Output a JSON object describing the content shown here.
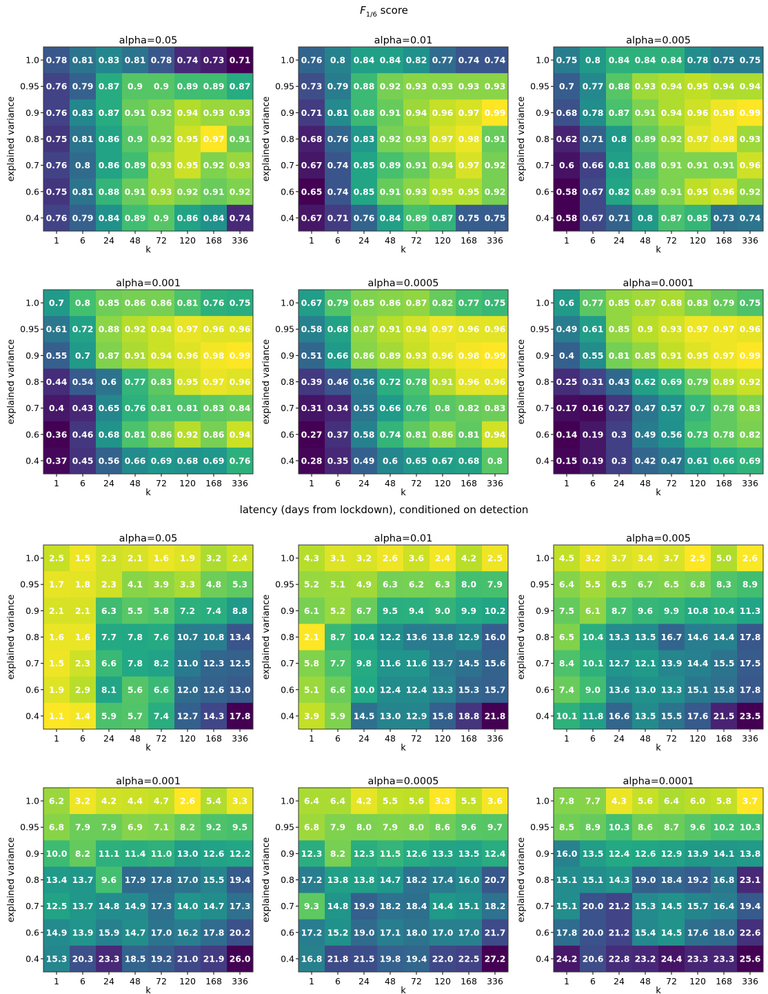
{
  "sections": [
    {
      "title_main": "F",
      "title_sub": "1/6",
      "title_rest": " score"
    },
    {
      "title_main": "latency (days from lockdown), conditioned on detection",
      "title_sub": "",
      "title_rest": ""
    }
  ],
  "chart_data": [
    {
      "type": "heatmap",
      "section": 0,
      "title": "alpha=0.05",
      "xlabel": "k",
      "ylabel": "explained variance",
      "x": [
        "1",
        "6",
        "24",
        "48",
        "72",
        "120",
        "168",
        "336"
      ],
      "y": [
        "1.0",
        "0.95",
        "0.9",
        "0.8",
        "0.7",
        "0.6",
        "0.4"
      ],
      "values": [
        [
          0.78,
          0.81,
          0.83,
          0.81,
          0.78,
          0.74,
          0.73,
          0.71
        ],
        [
          0.76,
          0.79,
          0.87,
          0.9,
          0.9,
          0.89,
          0.89,
          0.87
        ],
        [
          0.76,
          0.83,
          0.87,
          0.91,
          0.92,
          0.94,
          0.93,
          0.93
        ],
        [
          0.75,
          0.81,
          0.86,
          0.9,
          0.92,
          0.95,
          0.97,
          0.91
        ],
        [
          0.76,
          0.8,
          0.86,
          0.89,
          0.93,
          0.95,
          0.92,
          0.93
        ],
        [
          0.75,
          0.81,
          0.88,
          0.91,
          0.93,
          0.92,
          0.91,
          0.92
        ],
        [
          0.76,
          0.79,
          0.84,
          0.89,
          0.9,
          0.86,
          0.84,
          0.74
        ]
      ]
    },
    {
      "type": "heatmap",
      "section": 0,
      "title": "alpha=0.01",
      "xlabel": "k",
      "ylabel": "explained variance",
      "x": [
        "1",
        "6",
        "24",
        "48",
        "72",
        "120",
        "168",
        "336"
      ],
      "y": [
        "1.0",
        "0.95",
        "0.9",
        "0.8",
        "0.7",
        "0.6",
        "0.4"
      ],
      "values": [
        [
          0.76,
          0.8,
          0.84,
          0.84,
          0.82,
          0.77,
          0.74,
          0.74
        ],
        [
          0.73,
          0.79,
          0.88,
          0.92,
          0.93,
          0.93,
          0.93,
          0.93
        ],
        [
          0.71,
          0.81,
          0.88,
          0.91,
          0.94,
          0.96,
          0.97,
          0.99
        ],
        [
          0.68,
          0.76,
          0.83,
          0.92,
          0.93,
          0.97,
          0.98,
          0.91
        ],
        [
          0.67,
          0.74,
          0.85,
          0.89,
          0.91,
          0.94,
          0.97,
          0.92
        ],
        [
          0.65,
          0.74,
          0.85,
          0.91,
          0.93,
          0.95,
          0.95,
          0.92
        ],
        [
          0.67,
          0.71,
          0.76,
          0.84,
          0.89,
          0.87,
          0.75,
          0.75
        ]
      ]
    },
    {
      "type": "heatmap",
      "section": 0,
      "title": "alpha=0.005",
      "xlabel": "k",
      "ylabel": "explained variance",
      "x": [
        "1",
        "6",
        "24",
        "48",
        "72",
        "120",
        "168",
        "336"
      ],
      "y": [
        "1.0",
        "0.95",
        "0.9",
        "0.8",
        "0.7",
        "0.6",
        "0.4"
      ],
      "values": [
        [
          0.75,
          0.8,
          0.84,
          0.84,
          0.84,
          0.78,
          0.75,
          0.75
        ],
        [
          0.7,
          0.77,
          0.88,
          0.93,
          0.94,
          0.95,
          0.94,
          0.94
        ],
        [
          0.68,
          0.78,
          0.87,
          0.91,
          0.94,
          0.96,
          0.98,
          0.99
        ],
        [
          0.62,
          0.71,
          0.8,
          0.89,
          0.92,
          0.97,
          0.98,
          0.93
        ],
        [
          0.6,
          0.66,
          0.81,
          0.88,
          0.91,
          0.91,
          0.91,
          0.96
        ],
        [
          0.58,
          0.67,
          0.82,
          0.89,
          0.91,
          0.95,
          0.96,
          0.92
        ],
        [
          0.58,
          0.67,
          0.71,
          0.8,
          0.87,
          0.85,
          0.73,
          0.74
        ]
      ]
    },
    {
      "type": "heatmap",
      "section": 0,
      "title": "alpha=0.001",
      "xlabel": "k",
      "ylabel": "explained variance",
      "x": [
        "1",
        "6",
        "24",
        "48",
        "72",
        "120",
        "168",
        "336"
      ],
      "y": [
        "1.0",
        "0.95",
        "0.9",
        "0.8",
        "0.7",
        "0.6",
        "0.4"
      ],
      "values": [
        [
          0.7,
          0.8,
          0.85,
          0.86,
          0.86,
          0.81,
          0.76,
          0.75
        ],
        [
          0.61,
          0.72,
          0.88,
          0.92,
          0.94,
          0.97,
          0.96,
          0.96
        ],
        [
          0.55,
          0.7,
          0.87,
          0.91,
          0.94,
          0.96,
          0.98,
          0.99
        ],
        [
          0.44,
          0.54,
          0.6,
          0.77,
          0.83,
          0.95,
          0.97,
          0.96
        ],
        [
          0.4,
          0.43,
          0.65,
          0.76,
          0.81,
          0.81,
          0.83,
          0.84
        ],
        [
          0.36,
          0.46,
          0.68,
          0.81,
          0.86,
          0.92,
          0.86,
          0.94
        ],
        [
          0.37,
          0.45,
          0.56,
          0.66,
          0.69,
          0.68,
          0.69,
          0.76
        ]
      ]
    },
    {
      "type": "heatmap",
      "section": 0,
      "title": "alpha=0.0005",
      "xlabel": "k",
      "ylabel": "explained variance",
      "x": [
        "1",
        "6",
        "24",
        "48",
        "72",
        "120",
        "168",
        "336"
      ],
      "y": [
        "1.0",
        "0.95",
        "0.9",
        "0.8",
        "0.7",
        "0.6",
        "0.4"
      ],
      "values": [
        [
          0.67,
          0.79,
          0.85,
          0.86,
          0.87,
          0.82,
          0.77,
          0.75
        ],
        [
          0.58,
          0.68,
          0.87,
          0.91,
          0.94,
          0.97,
          0.96,
          0.96
        ],
        [
          0.51,
          0.66,
          0.86,
          0.89,
          0.93,
          0.96,
          0.98,
          0.99
        ],
        [
          0.39,
          0.46,
          0.56,
          0.72,
          0.78,
          0.91,
          0.96,
          0.96
        ],
        [
          0.31,
          0.34,
          0.55,
          0.66,
          0.76,
          0.8,
          0.82,
          0.83
        ],
        [
          0.27,
          0.37,
          0.58,
          0.74,
          0.81,
          0.86,
          0.81,
          0.94
        ],
        [
          0.28,
          0.35,
          0.49,
          0.6,
          0.65,
          0.67,
          0.68,
          0.8
        ]
      ]
    },
    {
      "type": "heatmap",
      "section": 0,
      "title": "alpha=0.0001",
      "xlabel": "k",
      "ylabel": "explained variance",
      "x": [
        "1",
        "6",
        "24",
        "48",
        "72",
        "120",
        "168",
        "336"
      ],
      "y": [
        "1.0",
        "0.95",
        "0.9",
        "0.8",
        "0.7",
        "0.6",
        "0.4"
      ],
      "values": [
        [
          0.6,
          0.77,
          0.85,
          0.87,
          0.88,
          0.83,
          0.79,
          0.75
        ],
        [
          0.49,
          0.61,
          0.85,
          0.9,
          0.93,
          0.97,
          0.97,
          0.96
        ],
        [
          0.4,
          0.55,
          0.81,
          0.85,
          0.91,
          0.95,
          0.97,
          0.99
        ],
        [
          0.25,
          0.31,
          0.43,
          0.62,
          0.69,
          0.79,
          0.89,
          0.92
        ],
        [
          0.17,
          0.16,
          0.27,
          0.47,
          0.57,
          0.7,
          0.78,
          0.83
        ],
        [
          0.14,
          0.19,
          0.3,
          0.49,
          0.56,
          0.73,
          0.78,
          0.82
        ],
        [
          0.15,
          0.19,
          0.3,
          0.42,
          0.47,
          0.61,
          0.66,
          0.69
        ]
      ]
    },
    {
      "type": "heatmap",
      "section": 1,
      "title": "alpha=0.05",
      "xlabel": "k",
      "ylabel": "explained variance",
      "x": [
        "1",
        "6",
        "24",
        "48",
        "72",
        "120",
        "168",
        "336"
      ],
      "y": [
        "1.0",
        "0.95",
        "0.9",
        "0.8",
        "0.7",
        "0.6",
        "0.4"
      ],
      "values": [
        [
          "2.5",
          "1.5",
          "2.3",
          "2.1",
          "1.6",
          "1.9",
          "3.2",
          "2.4"
        ],
        [
          "1.7",
          "1.8",
          "2.3",
          "4.1",
          "3.9",
          "3.3",
          "4.8",
          "5.3"
        ],
        [
          "2.1",
          "2.1",
          "6.3",
          "5.5",
          "5.8",
          "7.2",
          "7.4",
          "8.8"
        ],
        [
          "1.6",
          "1.6",
          "7.7",
          "7.8",
          "7.6",
          "10.7",
          "10.8",
          "13.4"
        ],
        [
          "1.5",
          "2.3",
          "6.6",
          "7.8",
          "8.2",
          "11.0",
          "12.3",
          "12.5"
        ],
        [
          "1.9",
          "2.9",
          "8.1",
          "5.6",
          "6.6",
          "12.0",
          "12.6",
          "13.0"
        ],
        [
          "1.1",
          "1.4",
          "5.9",
          "5.7",
          "7.4",
          "12.7",
          "14.3",
          "17.8"
        ]
      ]
    },
    {
      "type": "heatmap",
      "section": 1,
      "title": "alpha=0.01",
      "xlabel": "k",
      "ylabel": "explained variance",
      "x": [
        "1",
        "6",
        "24",
        "48",
        "72",
        "120",
        "168",
        "336"
      ],
      "y": [
        "1.0",
        "0.95",
        "0.9",
        "0.8",
        "0.7",
        "0.6",
        "0.4"
      ],
      "values": [
        [
          "4.3",
          "3.1",
          "3.2",
          "2.6",
          "3.6",
          "2.4",
          "4.2",
          "2.5"
        ],
        [
          "5.2",
          "5.1",
          "4.9",
          "6.3",
          "6.2",
          "6.3",
          "8.0",
          "7.9"
        ],
        [
          "6.1",
          "5.2",
          "6.7",
          "9.5",
          "9.4",
          "9.0",
          "9.9",
          "10.2"
        ],
        [
          "2.1",
          "8.7",
          "10.4",
          "12.2",
          "13.6",
          "13.8",
          "12.9",
          "16.0"
        ],
        [
          "5.8",
          "7.7",
          "9.8",
          "11.6",
          "11.6",
          "13.7",
          "14.5",
          "15.6"
        ],
        [
          "5.1",
          "6.6",
          "10.0",
          "12.4",
          "12.4",
          "13.3",
          "15.3",
          "15.7"
        ],
        [
          "3.9",
          "5.9",
          "14.5",
          "13.0",
          "12.9",
          "15.8",
          "18.8",
          "21.8"
        ]
      ]
    },
    {
      "type": "heatmap",
      "section": 1,
      "title": "alpha=0.005",
      "xlabel": "k",
      "ylabel": "explained variance",
      "x": [
        "1",
        "6",
        "24",
        "48",
        "72",
        "120",
        "168",
        "336"
      ],
      "y": [
        "1.0",
        "0.95",
        "0.9",
        "0.8",
        "0.7",
        "0.6",
        "0.4"
      ],
      "values": [
        [
          "4.5",
          "3.2",
          "3.7",
          "3.4",
          "3.7",
          "2.5",
          "5.0",
          "2.6"
        ],
        [
          "6.4",
          "5.5",
          "6.5",
          "6.7",
          "6.5",
          "6.8",
          "8.3",
          "8.9"
        ],
        [
          "7.5",
          "6.1",
          "8.7",
          "9.6",
          "9.9",
          "10.8",
          "10.4",
          "11.3"
        ],
        [
          "6.5",
          "10.4",
          "13.3",
          "13.5",
          "16.7",
          "14.6",
          "14.4",
          "17.8"
        ],
        [
          "8.4",
          "10.1",
          "12.7",
          "12.1",
          "13.9",
          "14.4",
          "15.5",
          "17.5"
        ],
        [
          "7.4",
          "9.0",
          "13.6",
          "13.0",
          "13.3",
          "15.1",
          "15.8",
          "17.8"
        ],
        [
          "10.1",
          "11.8",
          "16.6",
          "13.5",
          "15.5",
          "17.6",
          "21.5",
          "23.5"
        ]
      ]
    },
    {
      "type": "heatmap",
      "section": 1,
      "title": "alpha=0.001",
      "xlabel": "k",
      "ylabel": "explained variance",
      "x": [
        "1",
        "6",
        "24",
        "48",
        "72",
        "120",
        "168",
        "336"
      ],
      "y": [
        "1.0",
        "0.95",
        "0.9",
        "0.8",
        "0.7",
        "0.6",
        "0.4"
      ],
      "values": [
        [
          "6.2",
          "3.2",
          "4.2",
          "4.4",
          "4.7",
          "2.6",
          "5.4",
          "3.3"
        ],
        [
          "6.8",
          "7.9",
          "7.9",
          "6.9",
          "7.1",
          "8.2",
          "9.2",
          "9.5"
        ],
        [
          "10.0",
          "8.2",
          "11.1",
          "11.4",
          "11.0",
          "13.0",
          "12.6",
          "12.2"
        ],
        [
          "13.4",
          "13.7",
          "9.6",
          "17.9",
          "17.8",
          "17.0",
          "15.5",
          "19.4"
        ],
        [
          "12.5",
          "13.7",
          "14.8",
          "14.9",
          "17.3",
          "14.0",
          "14.7",
          "17.3"
        ],
        [
          "14.9",
          "13.9",
          "15.9",
          "14.7",
          "17.0",
          "16.2",
          "17.8",
          "20.2"
        ],
        [
          "15.3",
          "20.3",
          "23.3",
          "18.5",
          "19.2",
          "21.0",
          "21.9",
          "26.0"
        ]
      ]
    },
    {
      "type": "heatmap",
      "section": 1,
      "title": "alpha=0.0005",
      "xlabel": "k",
      "ylabel": "explained variance",
      "x": [
        "1",
        "6",
        "24",
        "48",
        "72",
        "120",
        "168",
        "336"
      ],
      "y": [
        "1.0",
        "0.95",
        "0.9",
        "0.8",
        "0.7",
        "0.6",
        "0.4"
      ],
      "values": [
        [
          "6.4",
          "6.4",
          "4.2",
          "5.5",
          "5.6",
          "3.3",
          "5.5",
          "3.6"
        ],
        [
          "6.8",
          "7.9",
          "8.0",
          "7.9",
          "8.0",
          "8.6",
          "9.6",
          "9.7"
        ],
        [
          "12.3",
          "8.2",
          "12.3",
          "11.5",
          "12.6",
          "13.3",
          "13.5",
          "12.4"
        ],
        [
          "17.2",
          "13.8",
          "13.8",
          "14.7",
          "18.2",
          "17.4",
          "16.0",
          "20.7"
        ],
        [
          "9.3",
          "14.8",
          "19.9",
          "18.2",
          "18.4",
          "14.4",
          "15.1",
          "18.2"
        ],
        [
          "17.2",
          "15.2",
          "19.0",
          "17.1",
          "18.0",
          "17.0",
          "17.0",
          "21.7"
        ],
        [
          "16.8",
          "21.8",
          "21.5",
          "19.8",
          "19.4",
          "22.0",
          "22.5",
          "27.2"
        ]
      ]
    },
    {
      "type": "heatmap",
      "section": 1,
      "title": "alpha=0.0001",
      "xlabel": "k",
      "ylabel": "explained variance",
      "x": [
        "1",
        "6",
        "24",
        "48",
        "72",
        "120",
        "168",
        "336"
      ],
      "y": [
        "1.0",
        "0.95",
        "0.9",
        "0.8",
        "0.7",
        "0.6",
        "0.4"
      ],
      "values": [
        [
          "7.8",
          "7.7",
          "4.3",
          "5.6",
          "6.4",
          "6.0",
          "5.8",
          "3.7"
        ],
        [
          "8.5",
          "8.9",
          "10.3",
          "8.6",
          "8.7",
          "9.6",
          "10.2",
          "10.3"
        ],
        [
          "16.0",
          "13.5",
          "12.4",
          "12.6",
          "12.9",
          "13.9",
          "14.1",
          "13.8"
        ],
        [
          "15.1",
          "15.1",
          "14.3",
          "19.0",
          "18.4",
          "19.2",
          "16.8",
          "23.1"
        ],
        [
          "15.1",
          "20.0",
          "21.2",
          "15.3",
          "14.5",
          "15.7",
          "16.4",
          "19.4"
        ],
        [
          "17.8",
          "20.0",
          "21.2",
          "15.4",
          "14.5",
          "17.6",
          "18.0",
          "22.6"
        ],
        [
          "24.2",
          "20.6",
          "22.8",
          "23.2",
          "24.4",
          "23.3",
          "23.3",
          "25.6"
        ]
      ]
    }
  ]
}
